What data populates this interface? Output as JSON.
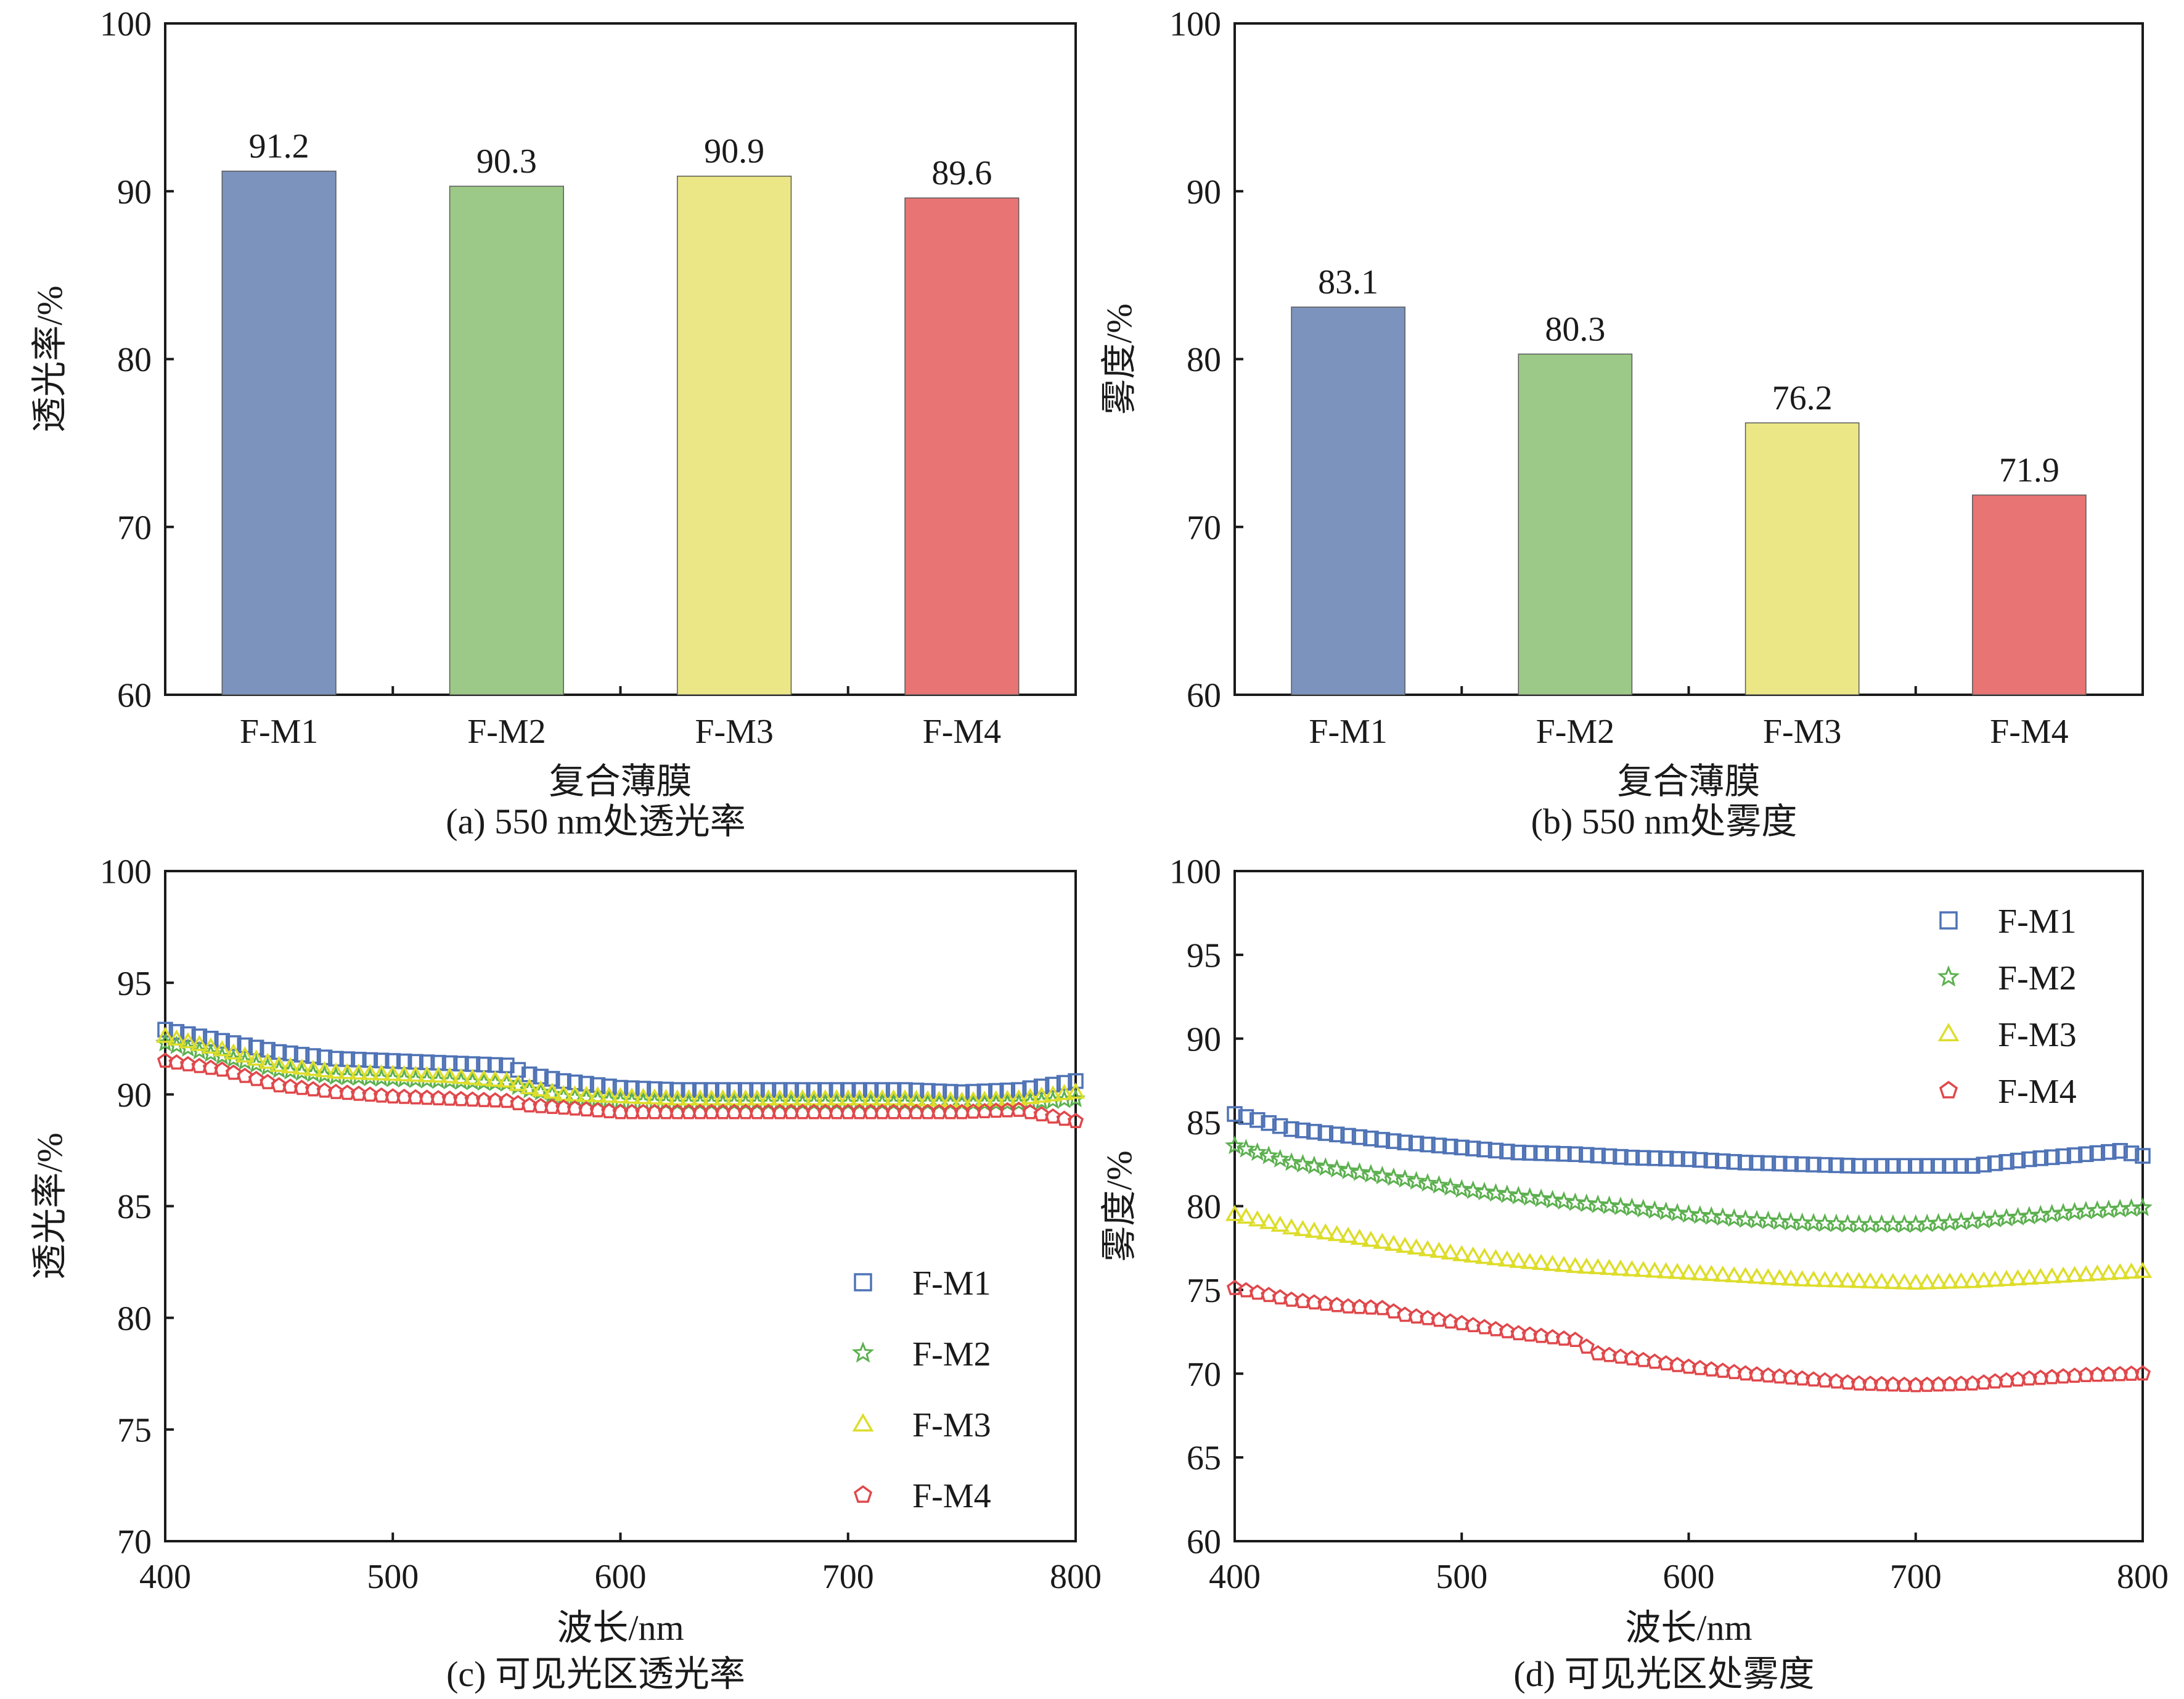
{
  "chart_data": [
    {
      "panel": "a",
      "type": "bar",
      "caption": "(a) 550 nm处透光率",
      "xlabel": "复合薄膜",
      "ylabel": "透光率/%",
      "ylim": [
        60,
        100
      ],
      "yticks": [
        60,
        70,
        80,
        90,
        100
      ],
      "categories": [
        "F-M1",
        "F-M2",
        "F-M3",
        "F-M4"
      ],
      "values": [
        91.2,
        90.3,
        90.9,
        89.6
      ],
      "value_labels": [
        "91.2",
        "90.3",
        "90.9",
        "89.6"
      ],
      "colors": [
        "#7b93bd",
        "#9cc987",
        "#ebe786",
        "#e87473"
      ]
    },
    {
      "panel": "b",
      "type": "bar",
      "caption": "(b) 550 nm处雾度",
      "xlabel": "复合薄膜",
      "ylabel": "雾度/%",
      "ylim": [
        60,
        100
      ],
      "yticks": [
        60,
        70,
        80,
        90,
        100
      ],
      "categories": [
        "F-M1",
        "F-M2",
        "F-M3",
        "F-M4"
      ],
      "values": [
        83.1,
        80.3,
        76.2,
        71.9
      ],
      "value_labels": [
        "83.1",
        "80.3",
        "76.2",
        "71.9"
      ],
      "colors": [
        "#7b93bd",
        "#9cc987",
        "#ebe786",
        "#e87473"
      ]
    },
    {
      "panel": "c",
      "type": "scatter",
      "caption": "(c) 可见光区透光率",
      "xlabel": "波长/nm",
      "ylabel": "透光率/%",
      "xlim": [
        400,
        800
      ],
      "ylim": [
        70,
        100
      ],
      "xticks": [
        400,
        500,
        600,
        700,
        800
      ],
      "yticks": [
        70,
        75,
        80,
        85,
        90,
        95,
        100
      ],
      "legend_position": "lower-right",
      "series": [
        {
          "name": "F-M1",
          "marker": "square",
          "color": "#4f73b5",
          "points": [
            [
              400,
              92.9
            ],
            [
              425,
              92.4
            ],
            [
              450,
              91.9
            ],
            [
              475,
              91.6
            ],
            [
              500,
              91.5
            ],
            [
              525,
              91.4
            ],
            [
              550,
              91.3
            ],
            [
              560,
              90.9
            ],
            [
              575,
              90.6
            ],
            [
              600,
              90.3
            ],
            [
              625,
              90.2
            ],
            [
              650,
              90.2
            ],
            [
              675,
              90.2
            ],
            [
              700,
              90.2
            ],
            [
              725,
              90.2
            ],
            [
              750,
              90.1
            ],
            [
              775,
              90.2
            ],
            [
              800,
              90.6
            ]
          ]
        },
        {
          "name": "F-M2",
          "marker": "star",
          "color": "#5cb04f",
          "points": [
            [
              400,
              92.3
            ],
            [
              425,
              91.7
            ],
            [
              450,
              91.1
            ],
            [
              475,
              90.8
            ],
            [
              500,
              90.7
            ],
            [
              525,
              90.6
            ],
            [
              550,
              90.5
            ],
            [
              560,
              90.2
            ],
            [
              575,
              89.9
            ],
            [
              600,
              89.7
            ],
            [
              625,
              89.6
            ],
            [
              650,
              89.6
            ],
            [
              675,
              89.6
            ],
            [
              700,
              89.6
            ],
            [
              725,
              89.6
            ],
            [
              750,
              89.6
            ],
            [
              775,
              89.6
            ],
            [
              800,
              89.8
            ]
          ]
        },
        {
          "name": "F-M3",
          "marker": "triangle",
          "color": "#dddd2a",
          "points": [
            [
              400,
              92.6
            ],
            [
              425,
              92.0
            ],
            [
              450,
              91.3
            ],
            [
              475,
              91.0
            ],
            [
              500,
              90.9
            ],
            [
              525,
              90.8
            ],
            [
              550,
              90.6
            ],
            [
              560,
              90.3
            ],
            [
              575,
              90.0
            ],
            [
              600,
              89.9
            ],
            [
              625,
              89.8
            ],
            [
              650,
              89.8
            ],
            [
              675,
              89.8
            ],
            [
              700,
              89.8
            ],
            [
              725,
              89.8
            ],
            [
              750,
              89.7
            ],
            [
              775,
              89.8
            ],
            [
              800,
              90.1
            ]
          ]
        },
        {
          "name": "F-M4",
          "marker": "pentagon",
          "color": "#e0484b",
          "points": [
            [
              400,
              91.5
            ],
            [
              425,
              91.1
            ],
            [
              450,
              90.4
            ],
            [
              475,
              90.1
            ],
            [
              500,
              89.9
            ],
            [
              525,
              89.8
            ],
            [
              550,
              89.7
            ],
            [
              560,
              89.5
            ],
            [
              575,
              89.4
            ],
            [
              600,
              89.2
            ],
            [
              625,
              89.2
            ],
            [
              650,
              89.2
            ],
            [
              675,
              89.2
            ],
            [
              700,
              89.2
            ],
            [
              725,
              89.2
            ],
            [
              750,
              89.2
            ],
            [
              775,
              89.3
            ],
            [
              800,
              88.8
            ]
          ]
        }
      ]
    },
    {
      "panel": "d",
      "type": "scatter",
      "caption": "(d) 可见光区处雾度",
      "xlabel": "波长/nm",
      "ylabel": "雾度/%",
      "xlim": [
        400,
        800
      ],
      "ylim": [
        60,
        100
      ],
      "xticks": [
        400,
        500,
        600,
        700,
        800
      ],
      "yticks": [
        60,
        65,
        70,
        75,
        80,
        85,
        90,
        95,
        100
      ],
      "legend_position": "upper-right",
      "series": [
        {
          "name": "F-M1",
          "marker": "square",
          "color": "#4f73b5",
          "points": [
            [
              400,
              85.5
            ],
            [
              425,
              84.6
            ],
            [
              450,
              84.2
            ],
            [
              475,
              83.8
            ],
            [
              500,
              83.5
            ],
            [
              525,
              83.2
            ],
            [
              550,
              83.1
            ],
            [
              575,
              82.9
            ],
            [
              600,
              82.8
            ],
            [
              625,
              82.6
            ],
            [
              650,
              82.5
            ],
            [
              675,
              82.4
            ],
            [
              700,
              82.4
            ],
            [
              725,
              82.4
            ],
            [
              750,
              82.8
            ],
            [
              775,
              83.1
            ],
            [
              790,
              83.3
            ],
            [
              800,
              83.0
            ]
          ]
        },
        {
          "name": "F-M2",
          "marker": "star",
          "color": "#5cb04f",
          "points": [
            [
              400,
              83.6
            ],
            [
              425,
              82.6
            ],
            [
              450,
              82.1
            ],
            [
              475,
              81.6
            ],
            [
              500,
              81.0
            ],
            [
              525,
              80.6
            ],
            [
              550,
              80.2
            ],
            [
              575,
              79.9
            ],
            [
              600,
              79.5
            ],
            [
              625,
              79.2
            ],
            [
              650,
              79.0
            ],
            [
              675,
              78.9
            ],
            [
              700,
              78.9
            ],
            [
              725,
              79.1
            ],
            [
              750,
              79.4
            ],
            [
              775,
              79.7
            ],
            [
              800,
              79.9
            ]
          ]
        },
        {
          "name": "F-M3",
          "marker": "triangle",
          "color": "#dddd2a",
          "points": [
            [
              400,
              79.5
            ],
            [
              425,
              78.7
            ],
            [
              450,
              78.2
            ],
            [
              475,
              77.6
            ],
            [
              500,
              77.1
            ],
            [
              525,
              76.7
            ],
            [
              550,
              76.4
            ],
            [
              575,
              76.2
            ],
            [
              600,
              76.0
            ],
            [
              625,
              75.8
            ],
            [
              650,
              75.6
            ],
            [
              675,
              75.5
            ],
            [
              700,
              75.4
            ],
            [
              725,
              75.5
            ],
            [
              750,
              75.7
            ],
            [
              775,
              75.9
            ],
            [
              800,
              76.1
            ]
          ]
        },
        {
          "name": "F-M4",
          "marker": "pentagon",
          "color": "#e0484b",
          "points": [
            [
              400,
              75.1
            ],
            [
              425,
              74.4
            ],
            [
              450,
              74.0
            ],
            [
              465,
              73.9
            ],
            [
              475,
              73.5
            ],
            [
              500,
              73.0
            ],
            [
              525,
              72.4
            ],
            [
              550,
              72.0
            ],
            [
              560,
              71.2
            ],
            [
              575,
              70.9
            ],
            [
              600,
              70.4
            ],
            [
              625,
              70.0
            ],
            [
              650,
              69.7
            ],
            [
              675,
              69.4
            ],
            [
              700,
              69.3
            ],
            [
              725,
              69.4
            ],
            [
              750,
              69.7
            ],
            [
              775,
              69.9
            ],
            [
              800,
              70.0
            ]
          ]
        }
      ]
    }
  ]
}
